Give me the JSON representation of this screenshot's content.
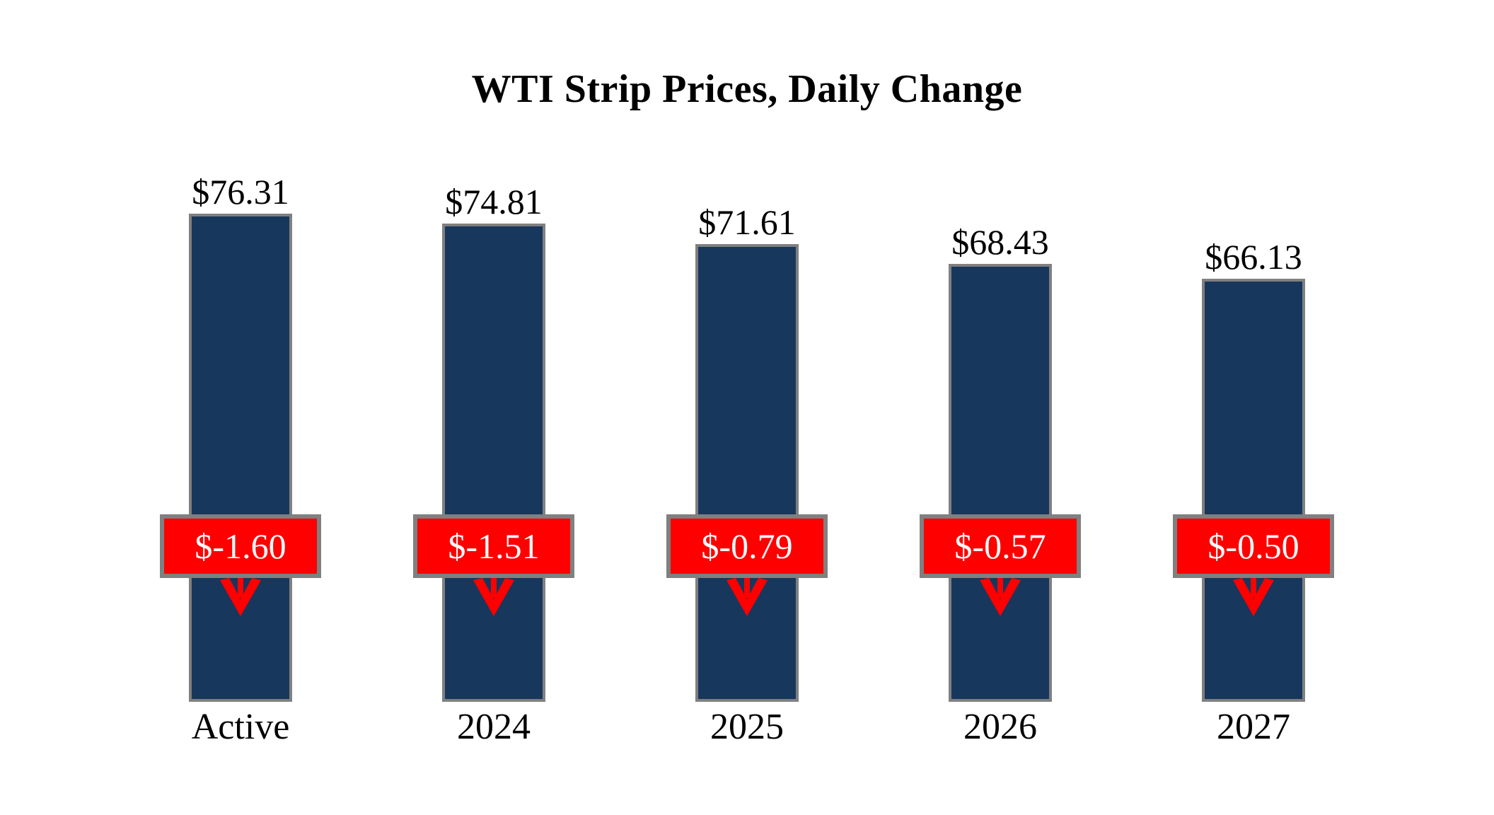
{
  "title": "WTI Strip Prices, Daily Change",
  "colors": {
    "background": "#FFFFFF",
    "bar_fill": "#17375D",
    "bar_border": "#808080",
    "badge_fill": "#FF0000",
    "badge_border": "#808080",
    "badge_text": "#FFFFFF",
    "label_text": "#000000",
    "arrow": "#FF0000"
  },
  "icons": {
    "change_direction": "down-arrow"
  },
  "chart_data": {
    "type": "bar",
    "title": "WTI Strip Prices, Daily Change",
    "categories": [
      "Active",
      "2024",
      "2025",
      "2026",
      "2027"
    ],
    "series": [
      {
        "name": "WTI Strip Price",
        "values": [
          76.31,
          74.81,
          71.61,
          68.43,
          66.13
        ]
      },
      {
        "name": "Daily Change",
        "values": [
          -1.6,
          -1.51,
          -0.79,
          -0.57,
          -0.5
        ]
      }
    ],
    "price_labels": [
      "$76.31",
      "$74.81",
      "$71.61",
      "$68.43",
      "$66.13"
    ],
    "change_labels": [
      "$-1.60",
      "$-1.51",
      "$-0.79",
      "$-0.57",
      "$-0.50"
    ],
    "xlabel": "",
    "ylabel": "",
    "ylim": [
      0,
      84
    ],
    "grid": false,
    "legend": "none",
    "bar_color": "#17375D",
    "value_labels_position": "above-bars",
    "change_badges": "red band overlaid on each bar with white value and red down arrow"
  }
}
